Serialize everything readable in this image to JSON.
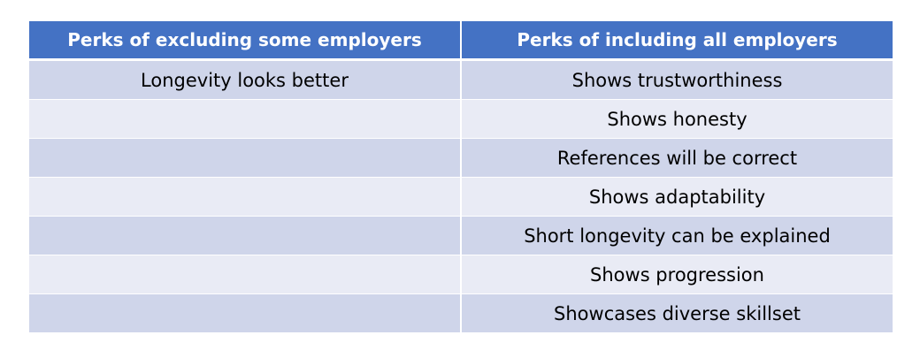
{
  "table": {
    "headers": [
      "Perks of excluding some employers",
      "Perks of including all employers"
    ],
    "rows": [
      [
        "Longevity looks better",
        "Shows trustworthiness"
      ],
      [
        "",
        "Shows honesty"
      ],
      [
        "",
        "References will be correct"
      ],
      [
        "",
        "Shows adaptability"
      ],
      [
        "",
        "Short longevity can be explained"
      ],
      [
        "",
        "Shows progression"
      ],
      [
        "",
        "Showcases diverse skillset"
      ]
    ]
  }
}
